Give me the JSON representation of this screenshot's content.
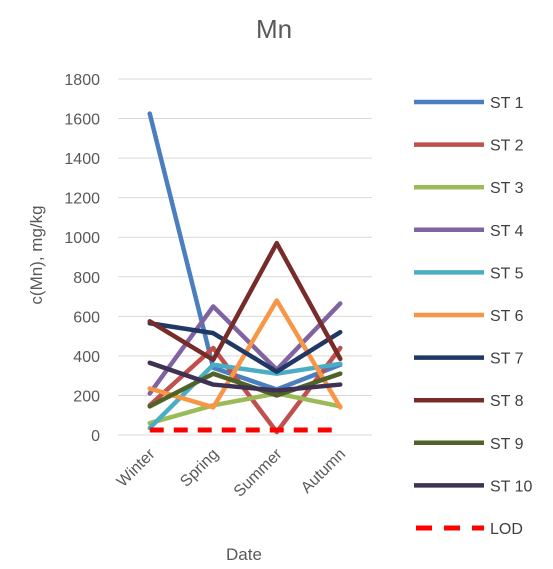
{
  "chart_data": {
    "type": "line",
    "title": "Mn",
    "xlabel": "Date",
    "ylabel": "c(Mn), mg/kg",
    "categories": [
      "Winter",
      "Spring",
      "Summer",
      "Autumn"
    ],
    "ylim": [
      0,
      1800
    ],
    "yticks": [
      0,
      200,
      400,
      600,
      800,
      1000,
      1200,
      1400,
      1600,
      1800
    ],
    "grid": true,
    "legend_position": "right",
    "series": [
      {
        "name": "ST 1",
        "color": "#4a7ebf",
        "values": [
          1625,
          340,
          230,
          355
        ]
      },
      {
        "name": "ST 2",
        "color": "#c0504d",
        "values": [
          150,
          440,
          15,
          440
        ]
      },
      {
        "name": "ST 3",
        "color": "#9bbb59",
        "values": [
          60,
          150,
          210,
          145
        ]
      },
      {
        "name": "ST 4",
        "color": "#8064a2",
        "values": [
          210,
          650,
          330,
          665
        ]
      },
      {
        "name": "ST 5",
        "color": "#4bacc6",
        "values": [
          35,
          355,
          310,
          360
        ]
      },
      {
        "name": "ST 6",
        "color": "#f79646",
        "values": [
          235,
          140,
          680,
          140
        ]
      },
      {
        "name": "ST 7",
        "color": "#1f3864",
        "values": [
          565,
          515,
          320,
          520
        ]
      },
      {
        "name": "ST 8",
        "color": "#772c2a",
        "values": [
          575,
          380,
          970,
          385
        ]
      },
      {
        "name": "ST 9",
        "color": "#4f6228",
        "values": [
          145,
          310,
          200,
          310
        ]
      },
      {
        "name": "ST 10",
        "color": "#3f3151",
        "values": [
          365,
          255,
          225,
          255
        ]
      },
      {
        "name": "LOD",
        "color": "#ff0000",
        "dashed": true,
        "values": [
          25,
          25,
          25,
          25
        ]
      }
    ]
  }
}
